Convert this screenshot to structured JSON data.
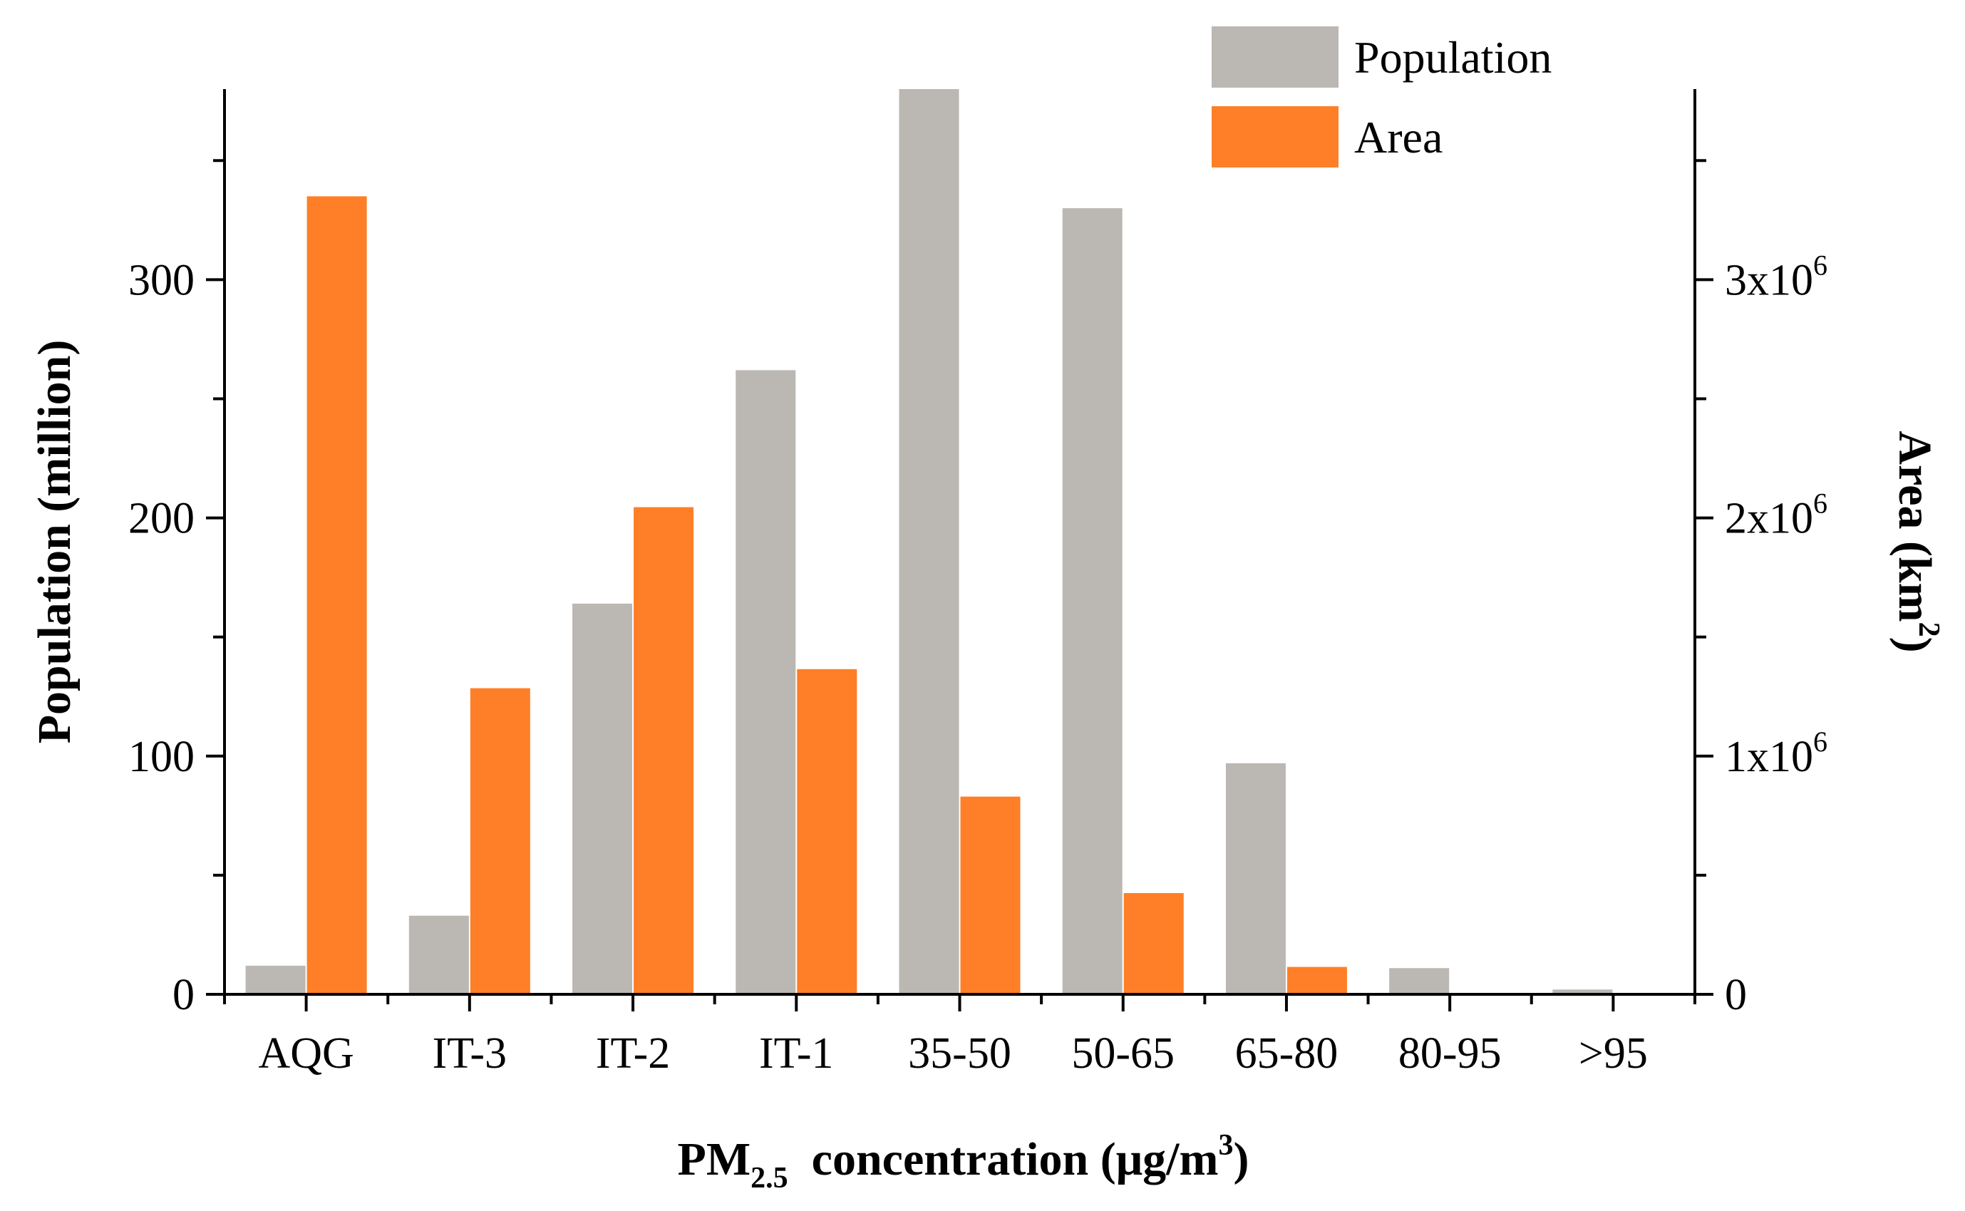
{
  "chart_data": {
    "type": "bar",
    "title": "",
    "xlabel": {
      "main": "PM",
      "sub": "2.5",
      "rest": " concentration (μg/m",
      "sup": "3",
      "close": ")"
    },
    "ylabel_left": "Population (million)",
    "ylabel_right": {
      "main": "Area (km",
      "sup": "2",
      "close": ")"
    },
    "categories": [
      "AQG",
      "IT-3",
      "IT-2",
      "IT-1",
      "35-50",
      "50-65",
      "65-80",
      "80-95",
      ">95"
    ],
    "series": [
      {
        "name": "Population",
        "axis": "left",
        "color": "#bbb7b3",
        "values": [
          12,
          33,
          164,
          262,
          380,
          330,
          97,
          11,
          2
        ]
      },
      {
        "name": "Area",
        "axis": "right",
        "color": "#fe7f27",
        "values": [
          3350000,
          1285000,
          2045000,
          1365000,
          830000,
          425000,
          115000,
          5000,
          0
        ]
      }
    ],
    "ylim_left": [
      0,
      380
    ],
    "ylim_right": [
      0,
      3800000
    ],
    "yticks_left": [
      {
        "value": 0,
        "label": "0"
      },
      {
        "value": 100,
        "label": "100"
      },
      {
        "value": 200,
        "label": "200"
      },
      {
        "value": 300,
        "label": "300"
      }
    ],
    "yticks_right": [
      {
        "value": 0,
        "main": "0",
        "sup": ""
      },
      {
        "value": 1000000,
        "main": "1x10",
        "sup": "6"
      },
      {
        "value": 2000000,
        "main": "2x10",
        "sup": "6"
      },
      {
        "value": 3000000,
        "main": "3x10",
        "sup": "6"
      }
    ],
    "legend_position": "top-right",
    "grid": false
  }
}
